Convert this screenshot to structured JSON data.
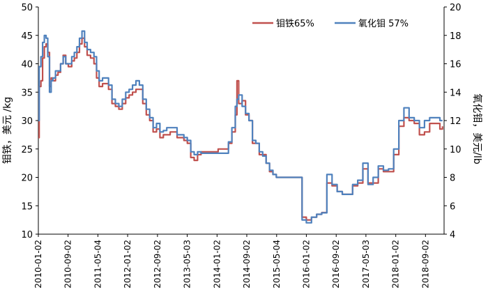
{
  "chart_data": {
    "type": "line",
    "ylabel_left": "钼铁，美元 /kg",
    "ylabel_right": "氧化钼，美元/lb",
    "ylim_left": [
      10,
      50
    ],
    "ylim_right": [
      4,
      20
    ],
    "yticks_left": [
      10,
      15,
      20,
      25,
      30,
      35,
      40,
      45,
      50
    ],
    "yticks_right": [
      4,
      6,
      8,
      10,
      12,
      14,
      16,
      18,
      20
    ],
    "xticks": [
      "2010-01-02",
      "2010-09-02",
      "2011-05-04",
      "2012-01-02",
      "2012-09-02",
      "2013-05-03",
      "2014-01-02",
      "2014-09-02",
      "2015-05-04",
      "2016-01-02",
      "2016-09-02",
      "2017-05-03",
      "2018-01-02",
      "2018-09-02"
    ],
    "legend_position": "top-right",
    "grid": false,
    "series": [
      {
        "name": "钼铁65%",
        "axis": "left",
        "color": "#c0504d",
        "values": [
          [
            "2010-01-02",
            27.0
          ],
          [
            "2010-01-09",
            36.0
          ],
          [
            "2010-01-23",
            37.0
          ],
          [
            "2010-02-06",
            41.0
          ],
          [
            "2010-02-20",
            43.0
          ],
          [
            "2010-03-06",
            43.5
          ],
          [
            "2010-03-20",
            42.0
          ],
          [
            "2010-04-03",
            36.0
          ],
          [
            "2010-04-17",
            37.5
          ],
          [
            "2010-05-01",
            37.0
          ],
          [
            "2010-05-22",
            38.0
          ],
          [
            "2010-06-12",
            38.5
          ],
          [
            "2010-07-03",
            40.0
          ],
          [
            "2010-07-24",
            41.5
          ],
          [
            "2010-08-14",
            40.0
          ],
          [
            "2010-09-04",
            39.5
          ],
          [
            "2010-10-02",
            40.5
          ],
          [
            "2010-10-23",
            41.0
          ],
          [
            "2010-11-13",
            42.0
          ],
          [
            "2010-12-04",
            43.5
          ],
          [
            "2010-12-25",
            44.5
          ],
          [
            "2011-01-15",
            43.0
          ],
          [
            "2011-02-05",
            41.5
          ],
          [
            "2011-03-05",
            41.0
          ],
          [
            "2011-04-02",
            40.0
          ],
          [
            "2011-04-23",
            37.5
          ],
          [
            "2011-05-14",
            36.0
          ],
          [
            "2011-06-11",
            36.5
          ],
          [
            "2011-07-02",
            36.5
          ],
          [
            "2011-07-30",
            35.5
          ],
          [
            "2011-08-27",
            33.0
          ],
          [
            "2011-09-24",
            32.5
          ],
          [
            "2011-10-22",
            32.0
          ],
          [
            "2011-11-19",
            33.0
          ],
          [
            "2011-12-17",
            34.0
          ],
          [
            "2012-01-14",
            34.5
          ],
          [
            "2012-02-11",
            35.0
          ],
          [
            "2012-03-10",
            35.5
          ],
          [
            "2012-04-07",
            35.5
          ],
          [
            "2012-05-05",
            33.0
          ],
          [
            "2012-06-02",
            31.0
          ],
          [
            "2012-06-30",
            30.0
          ],
          [
            "2012-07-28",
            28.0
          ],
          [
            "2012-08-25",
            28.5
          ],
          [
            "2012-09-22",
            27.0
          ],
          [
            "2012-10-20",
            27.5
          ],
          [
            "2012-11-17",
            27.5
          ],
          [
            "2012-12-15",
            28.0
          ],
          [
            "2013-01-12",
            28.0
          ],
          [
            "2013-02-09",
            27.0
          ],
          [
            "2013-03-09",
            27.0
          ],
          [
            "2013-04-06",
            26.5
          ],
          [
            "2013-05-04",
            26.0
          ],
          [
            "2013-06-01",
            23.5
          ],
          [
            "2013-06-29",
            23.0
          ],
          [
            "2013-07-27",
            24.0
          ],
          [
            "2013-08-24",
            24.5
          ],
          [
            "2013-09-21",
            24.5
          ],
          [
            "2013-10-19",
            24.5
          ],
          [
            "2013-11-16",
            24.5
          ],
          [
            "2013-12-14",
            24.5
          ],
          [
            "2014-01-11",
            25.0
          ],
          [
            "2014-02-08",
            25.0
          ],
          [
            "2014-03-08",
            25.0
          ],
          [
            "2014-04-05",
            26.0
          ],
          [
            "2014-05-03",
            28.0
          ],
          [
            "2014-05-31",
            31.0
          ],
          [
            "2014-06-14",
            37.0
          ],
          [
            "2014-06-28",
            33.0
          ],
          [
            "2014-07-26",
            33.5
          ],
          [
            "2014-08-23",
            31.0
          ],
          [
            "2014-09-20",
            30.0
          ],
          [
            "2014-10-18",
            26.0
          ],
          [
            "2014-11-15",
            26.0
          ],
          [
            "2014-12-13",
            24.0
          ],
          [
            "2015-01-10",
            24.0
          ],
          [
            "2015-02-07",
            22.5
          ],
          [
            "2015-03-07",
            21.0
          ],
          [
            "2015-04-04",
            20.5
          ],
          [
            "2015-05-02",
            20.0
          ],
          [
            "2015-06-13",
            20.0
          ],
          [
            "2015-07-25",
            20.0
          ],
          [
            "2015-09-05",
            20.0
          ],
          [
            "2015-10-17",
            20.0
          ],
          [
            "2015-11-28",
            13.0
          ],
          [
            "2016-01-02",
            12.5
          ],
          [
            "2016-02-13",
            13.0
          ],
          [
            "2016-03-26",
            13.5
          ],
          [
            "2016-05-07",
            13.8
          ],
          [
            "2016-06-18",
            19.0
          ],
          [
            "2016-07-30",
            18.5
          ],
          [
            "2016-09-10",
            17.5
          ],
          [
            "2016-10-22",
            17.0
          ],
          [
            "2016-12-03",
            17.0
          ],
          [
            "2017-01-14",
            18.5
          ],
          [
            "2017-02-25",
            19.0
          ],
          [
            "2017-04-08",
            21.5
          ],
          [
            "2017-05-20",
            19.0
          ],
          [
            "2017-07-01",
            19.0
          ],
          [
            "2017-08-12",
            21.5
          ],
          [
            "2017-09-23",
            21.0
          ],
          [
            "2017-11-04",
            21.0
          ],
          [
            "2017-12-16",
            24.0
          ],
          [
            "2018-01-27",
            29.0
          ],
          [
            "2018-03-10",
            30.5
          ],
          [
            "2018-04-21",
            30.0
          ],
          [
            "2018-06-02",
            29.5
          ],
          [
            "2018-07-14",
            27.5
          ],
          [
            "2018-08-25",
            28.0
          ],
          [
            "2018-10-06",
            29.5
          ],
          [
            "2018-11-17",
            29.5
          ],
          [
            "2018-12-29",
            28.5
          ],
          [
            "2019-01-19",
            29.0
          ]
        ]
      },
      {
        "name": "氧化钼 57%",
        "axis": "right",
        "color": "#4f81bd",
        "values": [
          [
            "2010-01-02",
            12.0
          ],
          [
            "2010-01-09",
            15.8
          ],
          [
            "2010-01-23",
            16.5
          ],
          [
            "2010-02-06",
            17.5
          ],
          [
            "2010-02-20",
            18.0
          ],
          [
            "2010-03-06",
            17.8
          ],
          [
            "2010-03-20",
            16.5
          ],
          [
            "2010-04-03",
            14.0
          ],
          [
            "2010-04-17",
            14.8
          ],
          [
            "2010-05-01",
            15.0
          ],
          [
            "2010-05-22",
            15.5
          ],
          [
            "2010-06-12",
            15.5
          ],
          [
            "2010-07-03",
            16.0
          ],
          [
            "2010-07-24",
            16.5
          ],
          [
            "2010-08-14",
            16.0
          ],
          [
            "2010-09-04",
            16.0
          ],
          [
            "2010-10-02",
            16.5
          ],
          [
            "2010-10-23",
            16.8
          ],
          [
            "2010-11-13",
            17.2
          ],
          [
            "2010-12-04",
            17.8
          ],
          [
            "2010-12-25",
            18.3
          ],
          [
            "2011-01-15",
            17.5
          ],
          [
            "2011-02-05",
            17.0
          ],
          [
            "2011-03-05",
            16.8
          ],
          [
            "2011-04-02",
            16.5
          ],
          [
            "2011-04-23",
            15.5
          ],
          [
            "2011-05-14",
            14.8
          ],
          [
            "2011-06-11",
            15.0
          ],
          [
            "2011-07-02",
            15.0
          ],
          [
            "2011-07-30",
            14.5
          ],
          [
            "2011-08-27",
            13.5
          ],
          [
            "2011-09-24",
            13.2
          ],
          [
            "2011-10-22",
            13.0
          ],
          [
            "2011-11-19",
            13.5
          ],
          [
            "2011-12-17",
            14.0
          ],
          [
            "2012-01-14",
            14.2
          ],
          [
            "2012-02-11",
            14.5
          ],
          [
            "2012-03-10",
            14.8
          ],
          [
            "2012-04-07",
            14.5
          ],
          [
            "2012-05-05",
            13.5
          ],
          [
            "2012-06-02",
            12.8
          ],
          [
            "2012-06-30",
            12.2
          ],
          [
            "2012-07-28",
            11.5
          ],
          [
            "2012-08-25",
            11.8
          ],
          [
            "2012-09-22",
            11.2
          ],
          [
            "2012-10-20",
            11.3
          ],
          [
            "2012-11-17",
            11.5
          ],
          [
            "2012-12-15",
            11.5
          ],
          [
            "2013-01-12",
            11.5
          ],
          [
            "2013-02-09",
            11.0
          ],
          [
            "2013-03-09",
            11.0
          ],
          [
            "2013-04-06",
            10.8
          ],
          [
            "2013-05-04",
            10.6
          ],
          [
            "2013-06-01",
            9.8
          ],
          [
            "2013-06-29",
            9.6
          ],
          [
            "2013-07-27",
            9.8
          ],
          [
            "2013-08-24",
            9.7
          ],
          [
            "2013-09-21",
            9.7
          ],
          [
            "2013-10-19",
            9.7
          ],
          [
            "2013-11-16",
            9.7
          ],
          [
            "2013-12-14",
            9.7
          ],
          [
            "2014-01-11",
            9.7
          ],
          [
            "2014-02-08",
            9.7
          ],
          [
            "2014-03-08",
            9.7
          ],
          [
            "2014-04-05",
            10.5
          ],
          [
            "2014-05-03",
            11.5
          ],
          [
            "2014-05-31",
            13.0
          ],
          [
            "2014-06-14",
            13.5
          ],
          [
            "2014-06-28",
            13.8
          ],
          [
            "2014-07-26",
            13.0
          ],
          [
            "2014-08-23",
            12.5
          ],
          [
            "2014-09-20",
            12.0
          ],
          [
            "2014-10-18",
            10.6
          ],
          [
            "2014-11-15",
            10.4
          ],
          [
            "2014-12-13",
            9.8
          ],
          [
            "2015-01-10",
            9.5
          ],
          [
            "2015-02-07",
            9.0
          ],
          [
            "2015-03-07",
            8.5
          ],
          [
            "2015-04-04",
            8.2
          ],
          [
            "2015-05-02",
            8.0
          ],
          [
            "2015-06-13",
            8.0
          ],
          [
            "2015-07-25",
            8.0
          ],
          [
            "2015-09-05",
            8.0
          ],
          [
            "2015-10-17",
            8.0
          ],
          [
            "2015-11-28",
            5.0
          ],
          [
            "2016-01-02",
            4.8
          ],
          [
            "2016-02-13",
            5.2
          ],
          [
            "2016-03-26",
            5.4
          ],
          [
            "2016-05-07",
            5.5
          ],
          [
            "2016-06-18",
            8.2
          ],
          [
            "2016-07-30",
            7.5
          ],
          [
            "2016-09-10",
            7.0
          ],
          [
            "2016-10-22",
            6.8
          ],
          [
            "2016-12-03",
            6.8
          ],
          [
            "2017-01-14",
            7.5
          ],
          [
            "2017-02-25",
            7.8
          ],
          [
            "2017-04-08",
            9.0
          ],
          [
            "2017-05-20",
            7.5
          ],
          [
            "2017-07-01",
            8.0
          ],
          [
            "2017-08-12",
            8.8
          ],
          [
            "2017-09-23",
            8.5
          ],
          [
            "2017-11-04",
            8.6
          ],
          [
            "2017-12-16",
            10.0
          ],
          [
            "2018-01-27",
            12.0
          ],
          [
            "2018-03-10",
            12.9
          ],
          [
            "2018-04-21",
            12.2
          ],
          [
            "2018-06-02",
            12.0
          ],
          [
            "2018-07-14",
            11.5
          ],
          [
            "2018-08-25",
            12.0
          ],
          [
            "2018-10-06",
            12.2
          ],
          [
            "2018-11-17",
            12.2
          ],
          [
            "2018-12-29",
            12.0
          ],
          [
            "2019-01-19",
            12.0
          ]
        ]
      }
    ]
  }
}
